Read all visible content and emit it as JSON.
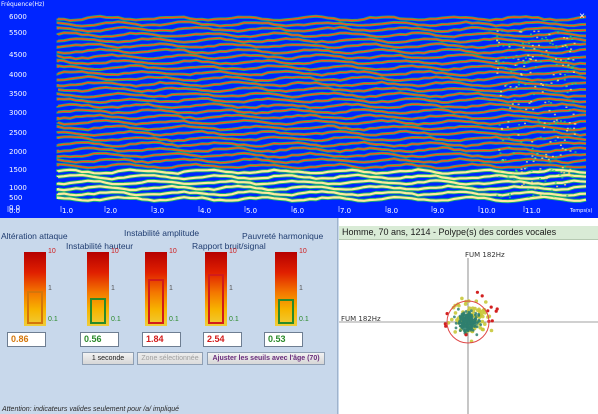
{
  "spectrogram": {
    "freq_axis_label": "Fréquence(Hz)",
    "time_axis_label": "Temps(s)",
    "y_ticks": [
      "6000",
      "5500",
      "4500",
      "4000",
      "3500",
      "3000",
      "2500",
      "2000",
      "1500",
      "1000",
      "500",
      "0.0"
    ],
    "x_ticks": [
      "0.0",
      "1.0",
      "2.0",
      "3.0",
      "4.0",
      "5.0",
      "6.0",
      "7.0",
      "8.0",
      "9.0",
      "10.0",
      "11.0"
    ],
    "colors": {
      "background": "#0025ff",
      "harmonic": "#ff4a1a",
      "noise": "#20c060"
    }
  },
  "indicators": {
    "titles": {
      "attack": "Altération attaque",
      "pitch": "Instabilité hauteur",
      "amplitude": "Instabilité amplitude",
      "noise": "Rapport bruit/signal",
      "harmonic": "Pauvreté harmonique"
    },
    "scale": {
      "top": "10",
      "mid": "1",
      "bottom": "0.1"
    },
    "values": [
      {
        "name": "attack",
        "value": "0.86",
        "color": "#d4760a",
        "marker": "#d4760a",
        "level": 0.86
      },
      {
        "name": "pitch",
        "value": "0.56",
        "color": "#2a8a2a",
        "marker": "#2a8a2a",
        "level": 0.56
      },
      {
        "name": "amplitude",
        "value": "1.84",
        "color": "#d21b1b",
        "marker": "#d21b1b",
        "level": 1.84
      },
      {
        "name": "noise",
        "value": "2.54",
        "color": "#d21b1b",
        "marker": "#d21b1b",
        "level": 2.54
      },
      {
        "name": "harmonic",
        "value": "0.53",
        "color": "#2a8a2a",
        "marker": "#2a8a2a",
        "level": 0.53
      }
    ],
    "buttons": {
      "one_second": "1 seconde",
      "selected_zone": "Zone sélectionnée",
      "adjust_age": "Ajuster les seuils avec l'âge (70)"
    },
    "footnote": "Attention: indicateurs valides seulement pour  /a/ impliqué"
  },
  "scatter": {
    "header": "Homme, 70 ans, 1214 -  Polype(s) des cordes vocales",
    "y_axis_label": "FUM 182Hz",
    "x_axis_label": "FUM 182Hz",
    "colors": {
      "points_main": "#2f7f6e",
      "points_outer": "#c8c83a",
      "outliers": "#d22020",
      "circle": "#e04848"
    }
  }
}
